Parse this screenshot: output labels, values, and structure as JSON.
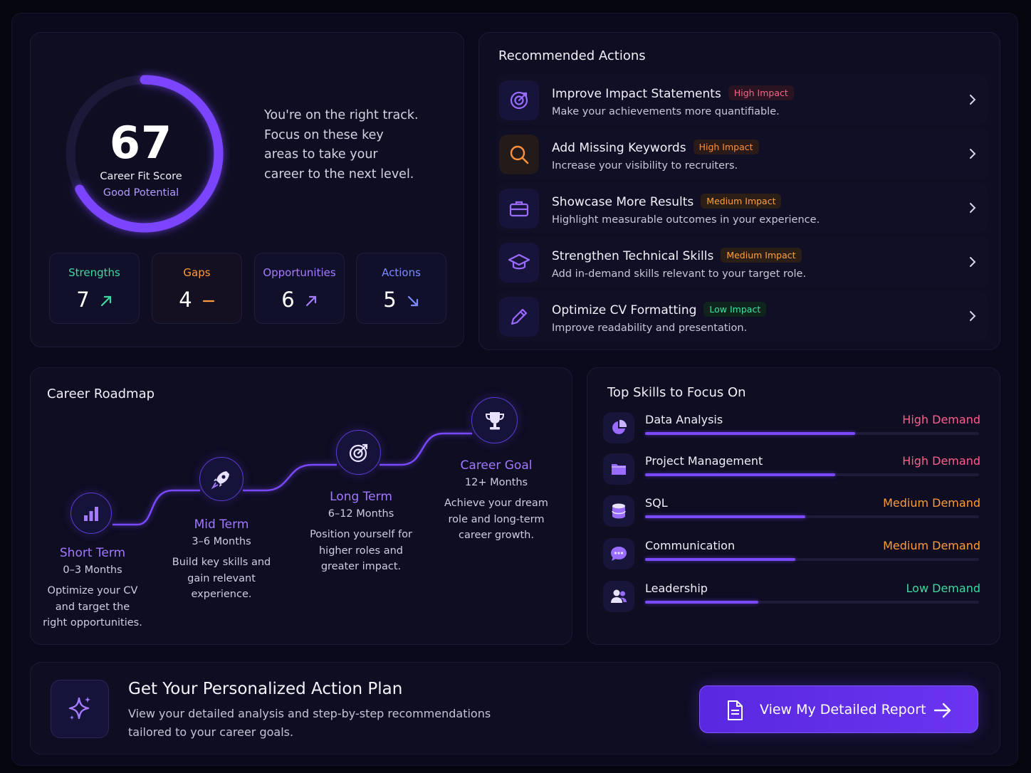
{
  "score": {
    "value": "67",
    "label": "Career Fit Score",
    "sublabel": "Good Potential",
    "fraction": 0.67,
    "message": "You're on the right track. Focus on these key areas to take your career to the next level.",
    "stats": [
      {
        "label": "Strengths",
        "value": "7",
        "color": "#3fd9a0",
        "trend": "up"
      },
      {
        "label": "Gaps",
        "value": "4",
        "color": "#ff9a3a",
        "trend": "flat"
      },
      {
        "label": "Opportunities",
        "value": "6",
        "color": "#a57bff",
        "trend": "up"
      },
      {
        "label": "Actions",
        "value": "5",
        "color": "#7b8bff",
        "trend": "down"
      }
    ]
  },
  "actions": {
    "title": "Recommended Actions",
    "items": [
      {
        "title": "Improve Impact Statements",
        "badge": "High Impact",
        "desc": "Make your achievements more quantifiable.",
        "icon": "target-icon"
      },
      {
        "title": "Add Missing Keywords",
        "badge": "High Impact",
        "desc": "Increase your visibility to recruiters.",
        "icon": "search-icon"
      },
      {
        "title": "Showcase More Results",
        "badge": "Medium Impact",
        "desc": "Highlight measurable outcomes in your experience.",
        "icon": "briefcase-icon"
      },
      {
        "title": "Strengthen Technical Skills",
        "badge": "Medium Impact",
        "desc": "Add in-demand skills relevant to your target role.",
        "icon": "graduation-cap-icon"
      },
      {
        "title": "Optimize CV Formatting",
        "badge": "Low Impact",
        "desc": "Improve readability and presentation.",
        "icon": "pencil-icon"
      }
    ]
  },
  "roadmap": {
    "title": "Career Roadmap",
    "stages": [
      {
        "name": "Short Term",
        "range": "0–3 Months",
        "desc": "Optimize your CV and target the right opportunities."
      },
      {
        "name": "Mid Term",
        "range": "3–6 Months",
        "desc": "Build key skills and gain relevant experience."
      },
      {
        "name": "Long Term",
        "range": "6–12 Months",
        "desc": "Position yourself for higher roles and greater impact."
      },
      {
        "name": "Career Goal",
        "range": "12+ Months",
        "desc": "Achieve your dream role and long-term career growth."
      }
    ]
  },
  "skills": {
    "title": "Top Skills to Focus On",
    "items": [
      {
        "name": "Data Analysis",
        "demand": "High Demand",
        "level": 0.63,
        "color": "#ff5f8a"
      },
      {
        "name": "Project Management",
        "demand": "High Demand",
        "level": 0.57,
        "color": "#ff5f8a"
      },
      {
        "name": "SQL",
        "demand": "Medium Demand",
        "level": 0.48,
        "color": "#ff9a3a"
      },
      {
        "name": "Communication",
        "demand": "Medium Demand",
        "level": 0.45,
        "color": "#ff9a3a"
      },
      {
        "name": "Leadership",
        "demand": "Low Demand",
        "level": 0.34,
        "color": "#3fd9a0"
      }
    ]
  },
  "cta": {
    "title": "Get Your Personalized Action Plan",
    "desc": "View your detailed analysis and step-by-step recommendations tailored to your career goals.",
    "button": "View My Detailed Report"
  }
}
